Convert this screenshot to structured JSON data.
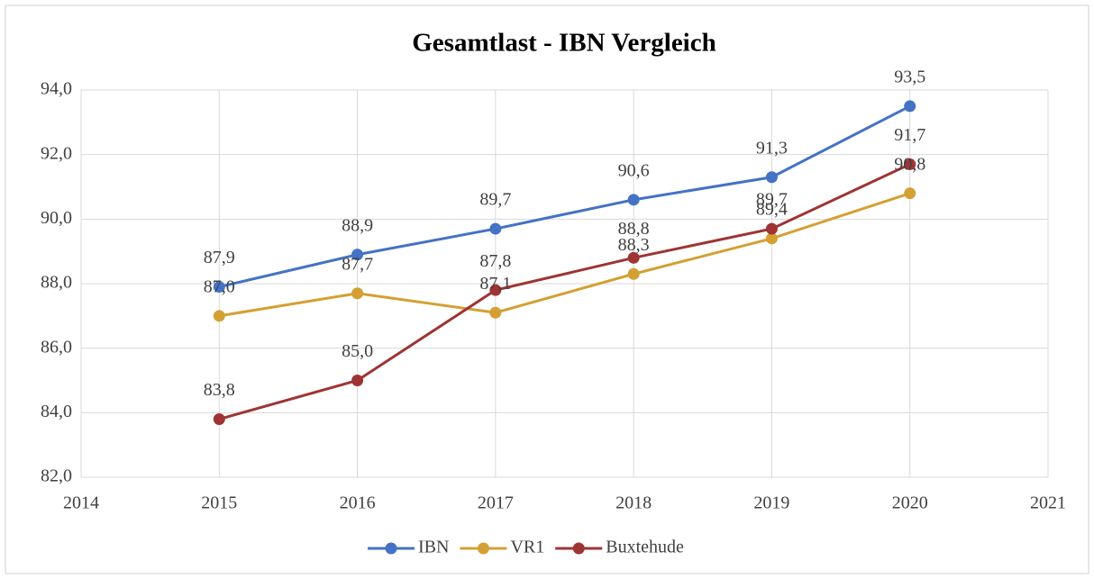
{
  "chart_data": {
    "type": "line",
    "title": "Gesamtlast - IBN Vergleich",
    "x": [
      2015,
      2016,
      2017,
      2018,
      2019,
      2020
    ],
    "xlim": [
      2014,
      2021
    ],
    "xticks": [
      2014,
      2015,
      2016,
      2017,
      2018,
      2019,
      2020,
      2021
    ],
    "ylim": [
      82,
      94
    ],
    "yticks": [
      {
        "value": 82,
        "label": "82,0"
      },
      {
        "value": 84,
        "label": "84,0"
      },
      {
        "value": 86,
        "label": "86,0"
      },
      {
        "value": 88,
        "label": "88,0"
      },
      {
        "value": 90,
        "label": "90,0"
      },
      {
        "value": 92,
        "label": "92,0"
      },
      {
        "value": 94,
        "label": "94,0"
      }
    ],
    "grid": true,
    "legend": "bottom",
    "series": [
      {
        "name": "IBN",
        "color": "#4472c4",
        "values": [
          87.9,
          88.9,
          89.7,
          90.6,
          91.3,
          93.5
        ],
        "value_labels": [
          "87,9",
          "88,9",
          "89,7",
          "90,6",
          "91,3",
          "93,5"
        ]
      },
      {
        "name": "VR1",
        "color": "#d4a033",
        "values": [
          87.0,
          87.7,
          87.1,
          88.3,
          89.4,
          90.8
        ],
        "value_labels": [
          "87,0",
          "87,7",
          "87,1",
          "88,3",
          "89,4",
          "90,8"
        ]
      },
      {
        "name": "Buxtehude",
        "color": "#9e3434",
        "values": [
          83.8,
          85.0,
          87.8,
          88.8,
          89.7,
          91.7
        ],
        "value_labels": [
          "83,8",
          "85,0",
          "87,8",
          "88,8",
          "89,7",
          "91,7"
        ]
      }
    ]
  }
}
